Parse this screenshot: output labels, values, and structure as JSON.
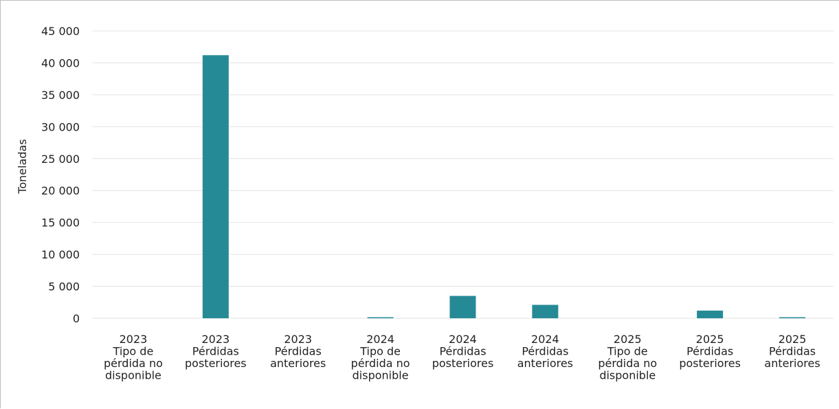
{
  "chart_data": {
    "type": "bar",
    "ylabel": "Toneladas",
    "xlabel": "",
    "ylim": [
      0,
      45000
    ],
    "yticks": [
      0,
      5000,
      10000,
      15000,
      20000,
      25000,
      30000,
      35000,
      40000,
      45000
    ],
    "ytick_labels": [
      "0",
      "5 000",
      "10 000",
      "15 000",
      "20 000",
      "25 000",
      "30 000",
      "35 000",
      "40 000",
      "45 000"
    ],
    "grid": true,
    "bar_color": "#268a96",
    "categories": [
      [
        "2023",
        "Tipo de",
        "pérdida no",
        "disponible"
      ],
      [
        "2023",
        "Pérdidas",
        "posteriores"
      ],
      [
        "2023",
        "Pérdidas",
        "anteriores"
      ],
      [
        "2024",
        "Tipo de",
        "pérdida no",
        "disponible"
      ],
      [
        "2024",
        "Pérdidas",
        "posteriores"
      ],
      [
        "2024",
        "Pérdidas",
        "anteriores"
      ],
      [
        "2025",
        "Tipo de",
        "pérdida no",
        "disponible"
      ],
      [
        "2025",
        "Pérdidas",
        "posteriores"
      ],
      [
        "2025",
        "Pérdidas",
        "anteriores"
      ]
    ],
    "values": [
      0,
      41200,
      0,
      150,
      3500,
      2100,
      0,
      1200,
      120
    ]
  }
}
